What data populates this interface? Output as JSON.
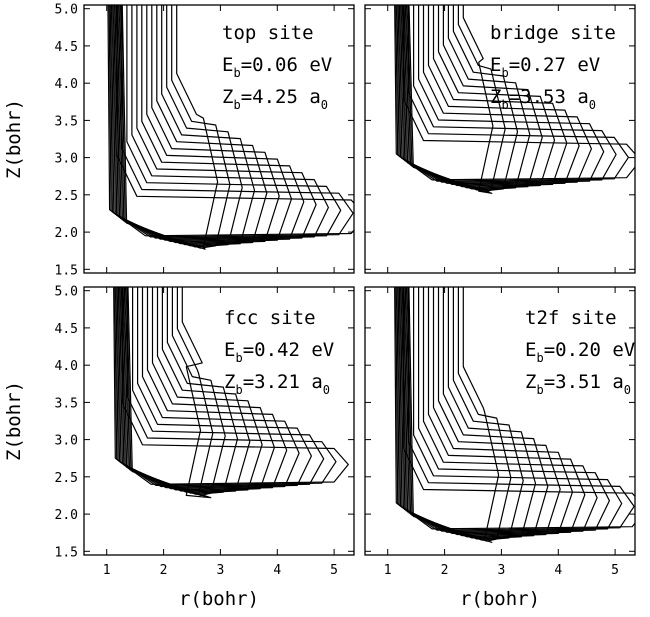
{
  "chart_data": [
    {
      "type": "contour",
      "site": "top site",
      "eb_symbol": "E",
      "eb_subscript": "b",
      "eb_value": "=0.06 eV",
      "zb_symbol": "Z",
      "zb_subscript": "b",
      "zb_value": "=4.25",
      "zb_unit": "a",
      "zb_unit_subscript": "0",
      "wall_r": 1.1,
      "well_z": 2.2,
      "well_r_max": 5.3,
      "levels": 13,
      "ylabel": "Z(bohr)",
      "xlabel": "",
      "xlim": [
        0.6,
        5.35
      ],
      "ylim": [
        1.45,
        5.05
      ],
      "yticks": [
        1.5,
        2.0,
        2.5,
        3.0,
        3.5,
        4.0,
        4.5,
        5.0
      ],
      "ytick_labels": [
        "1.5",
        "2.0",
        "2.5",
        "3.0",
        "3.5",
        "4.0",
        "4.5",
        "5.0"
      ]
    },
    {
      "type": "contour",
      "site": "bridge site",
      "eb_symbol": "E",
      "eb_subscript": "b",
      "eb_value": "=0.27 eV",
      "zb_symbol": "Z",
      "zb_subscript": "b",
      "zb_value": "=3.53",
      "zb_unit": "a",
      "zb_unit_subscript": "0",
      "wall_r": 1.2,
      "well_z": 2.95,
      "well_r_max": 5.2,
      "levels": 13,
      "ylabel": "",
      "xlabel": "",
      "xlim": [
        0.6,
        5.35
      ],
      "ylim": [
        1.45,
        5.05
      ]
    },
    {
      "type": "contour",
      "site": "fcc site",
      "eb_symbol": "E",
      "eb_subscript": "b",
      "eb_value": "=0.42 eV",
      "zb_symbol": "Z",
      "zb_subscript": "b",
      "zb_value": "=3.21",
      "zb_unit": "a",
      "zb_unit_subscript": "0",
      "wall_r": 1.2,
      "well_z": 2.65,
      "well_r_max": 5.0,
      "levels": 13,
      "ylabel": "Z(bohr)",
      "xlabel": "r(bohr)",
      "xlim": [
        0.6,
        5.35
      ],
      "ylim": [
        1.45,
        5.05
      ],
      "xticks": [
        1,
        2,
        3,
        4,
        5
      ],
      "xtick_labels": [
        "1",
        "2",
        "3",
        "4",
        "5"
      ],
      "yticks": [
        1.5,
        2.0,
        2.5,
        3.0,
        3.5,
        4.0,
        4.5,
        5.0
      ],
      "ytick_labels": [
        "1.5",
        "2.0",
        "2.5",
        "3.0",
        "3.5",
        "4.0",
        "4.5",
        "5.0"
      ]
    },
    {
      "type": "contour",
      "site": "t2f site",
      "eb_symbol": "E",
      "eb_subscript": "b",
      "eb_value": "=0.20 eV",
      "zb_symbol": "Z",
      "zb_subscript": "b",
      "zb_value": "=3.51",
      "zb_unit": "a",
      "zb_unit_subscript": "0",
      "wall_r": 1.2,
      "well_z": 2.05,
      "well_r_max": 5.3,
      "levels": 13,
      "ylabel": "",
      "xlabel": "r(bohr)",
      "xlim": [
        0.6,
        5.35
      ],
      "ylim": [
        1.45,
        5.05
      ],
      "xticks": [
        1,
        2,
        3,
        4,
        5
      ],
      "xtick_labels": [
        "1",
        "2",
        "3",
        "4",
        "5"
      ]
    }
  ]
}
